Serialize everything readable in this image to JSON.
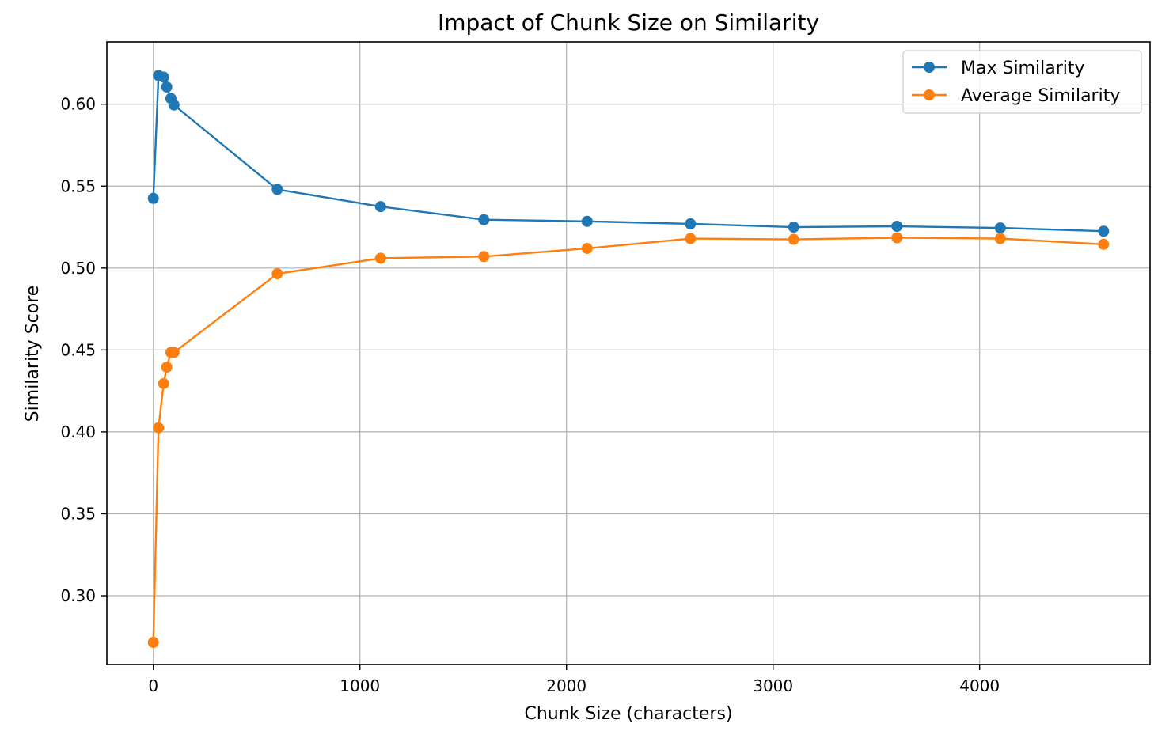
{
  "chart_data": {
    "type": "line",
    "title": "Impact of Chunk Size on Similarity",
    "xlabel": "Chunk Size (characters)",
    "ylabel": "Similarity Score",
    "xlim": [
      -225,
      4825
    ],
    "ylim": [
      0.258,
      0.638
    ],
    "x_ticks": [
      0,
      1000,
      2000,
      3000,
      4000
    ],
    "y_ticks": [
      0.3,
      0.35,
      0.4,
      0.45,
      0.5,
      0.55,
      0.6
    ],
    "grid": true,
    "legend_position": "top-right",
    "series": [
      {
        "name": "Max Similarity",
        "color": "#1f77b4",
        "points": [
          [
            0,
            0.5425
          ],
          [
            25,
            0.6175
          ],
          [
            50,
            0.6165
          ],
          [
            65,
            0.6105
          ],
          [
            85,
            0.6035
          ],
          [
            100,
            0.5995
          ],
          [
            600,
            0.548
          ],
          [
            1100,
            0.5375
          ],
          [
            1600,
            0.5295
          ],
          [
            2100,
            0.5285
          ],
          [
            2600,
            0.527
          ],
          [
            3100,
            0.525
          ],
          [
            3600,
            0.5255
          ],
          [
            4100,
            0.5245
          ],
          [
            4600,
            0.5225
          ]
        ]
      },
      {
        "name": "Average Similarity",
        "color": "#ff7f0e",
        "points": [
          [
            0,
            0.2715
          ],
          [
            25,
            0.4025
          ],
          [
            50,
            0.4295
          ],
          [
            65,
            0.4395
          ],
          [
            85,
            0.4485
          ],
          [
            100,
            0.4485
          ],
          [
            600,
            0.4965
          ],
          [
            1100,
            0.506
          ],
          [
            1600,
            0.507
          ],
          [
            2100,
            0.512
          ],
          [
            2600,
            0.518
          ],
          [
            3100,
            0.5175
          ],
          [
            3600,
            0.5185
          ],
          [
            4100,
            0.518
          ],
          [
            4600,
            0.5145
          ]
        ]
      }
    ]
  }
}
